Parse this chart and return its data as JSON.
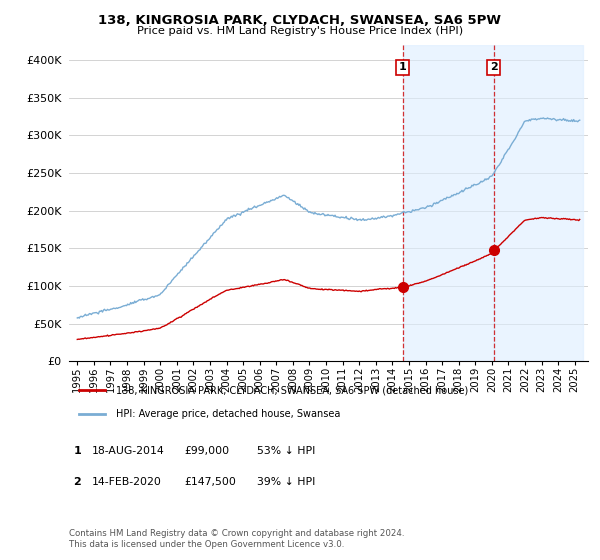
{
  "title": "138, KINGROSIA PARK, CLYDACH, SWANSEA, SA6 5PW",
  "subtitle": "Price paid vs. HM Land Registry's House Price Index (HPI)",
  "ylim": [
    0,
    420000
  ],
  "yticks": [
    0,
    50000,
    100000,
    150000,
    200000,
    250000,
    300000,
    350000,
    400000
  ],
  "ytick_labels": [
    "£0",
    "£50K",
    "£100K",
    "£150K",
    "£200K",
    "£250K",
    "£300K",
    "£350K",
    "£400K"
  ],
  "red_line_color": "#cc0000",
  "blue_line_color": "#7aadd4",
  "vline_color": "#cc0000",
  "marker1_date": 2014.63,
  "marker1_price": 99000,
  "marker2_date": 2020.12,
  "marker2_price": 147500,
  "legend_entry1": "138, KINGROSIA PARK, CLYDACH, SWANSEA, SA6 5PW (detached house)",
  "legend_entry2": "HPI: Average price, detached house, Swansea",
  "table_row1": [
    "1",
    "18-AUG-2014",
    "£99,000",
    "53% ↓ HPI"
  ],
  "table_row2": [
    "2",
    "14-FEB-2020",
    "£147,500",
    "39% ↓ HPI"
  ],
  "footer": "Contains HM Land Registry data © Crown copyright and database right 2024.\nThis data is licensed under the Open Government Licence v3.0.",
  "background_color": "#ffffff",
  "grid_color": "#cccccc",
  "span_color": "#ddeeff"
}
